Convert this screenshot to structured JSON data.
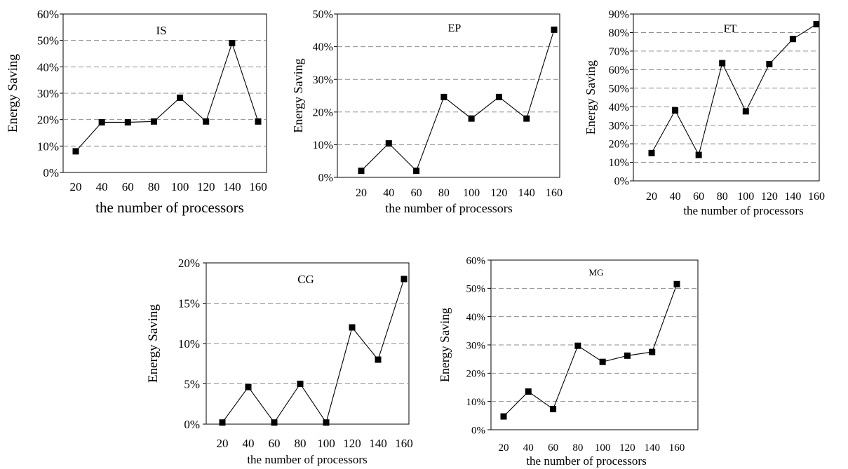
{
  "chart_data": [
    {
      "type": "line",
      "title": "IS",
      "xlabel": "the number of processors",
      "ylabel": "Energy Saving",
      "categories": [
        "20",
        "40",
        "60",
        "80",
        "100",
        "120",
        "140",
        "160"
      ],
      "values": [
        8,
        19,
        19,
        19.3,
        28.3,
        19.3,
        49,
        19.3
      ],
      "ylim": [
        0,
        60
      ],
      "yticks": [
        "0%",
        "10%",
        "20%",
        "30%",
        "40%",
        "50%",
        "60%"
      ],
      "grid": "horizontal dashed",
      "marker": "square"
    },
    {
      "type": "line",
      "title": "EP",
      "xlabel": "the number of processors",
      "ylabel": "Energy Saving",
      "categories": [
        "20",
        "40",
        "60",
        "80",
        "100",
        "120",
        "140",
        "160"
      ],
      "values": [
        2,
        10.4,
        2,
        24.6,
        18,
        24.6,
        18,
        45.2
      ],
      "ylim": [
        0,
        50
      ],
      "yticks": [
        "0%",
        "10%",
        "20%",
        "30%",
        "40%",
        "50%"
      ],
      "grid": "horizontal dashed",
      "marker": "square"
    },
    {
      "type": "line",
      "title": "FT",
      "xlabel": "the number of processors",
      "ylabel": "Energy Saving",
      "categories": [
        "20",
        "40",
        "60",
        "80",
        "100",
        "120",
        "140",
        "160"
      ],
      "values": [
        15,
        38,
        14,
        63.5,
        37.5,
        63,
        76.5,
        84.5
      ],
      "ylim": [
        0,
        90
      ],
      "yticks": [
        "0%",
        "10%",
        "20%",
        "30%",
        "40%",
        "50%",
        "60%",
        "70%",
        "80%",
        "90%"
      ],
      "grid": "horizontal dashed",
      "marker": "square"
    },
    {
      "type": "line",
      "title": "CG",
      "xlabel": "the number of processors",
      "ylabel": "Energy Saving",
      "categories": [
        "20",
        "40",
        "60",
        "80",
        "100",
        "120",
        "140",
        "160"
      ],
      "values": [
        0.2,
        4.6,
        0.2,
        5,
        0.2,
        12,
        8,
        18
      ],
      "ylim": [
        0,
        20
      ],
      "yticks": [
        "0%",
        "5%",
        "10%",
        "15%",
        "20%"
      ],
      "grid": "horizontal dashed",
      "marker": "square"
    },
    {
      "type": "line",
      "title": "MG",
      "xlabel": "the number of processors",
      "ylabel": "Energy Saving",
      "categories": [
        "20",
        "40",
        "60",
        "80",
        "100",
        "120",
        "140",
        "160"
      ],
      "values": [
        4.7,
        13.5,
        7.3,
        29.7,
        24,
        26.2,
        27.5,
        51.5
      ],
      "ylim": [
        0,
        60
      ],
      "yticks": [
        "0%",
        "10%",
        "20%",
        "30%",
        "40%",
        "50%",
        "60%"
      ],
      "grid": "horizontal dashed",
      "marker": "square"
    }
  ]
}
